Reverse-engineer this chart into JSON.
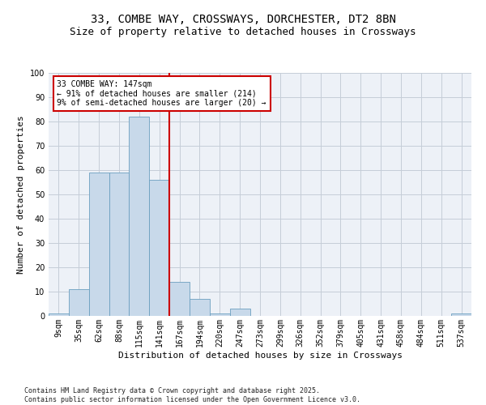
{
  "title_line1": "33, COMBE WAY, CROSSWAYS, DORCHESTER, DT2 8BN",
  "title_line2": "Size of property relative to detached houses in Crossways",
  "xlabel": "Distribution of detached houses by size in Crossways",
  "ylabel": "Number of detached properties",
  "bins": [
    "9sqm",
    "35sqm",
    "62sqm",
    "88sqm",
    "115sqm",
    "141sqm",
    "167sqm",
    "194sqm",
    "220sqm",
    "247sqm",
    "273sqm",
    "299sqm",
    "326sqm",
    "352sqm",
    "379sqm",
    "405sqm",
    "431sqm",
    "458sqm",
    "484sqm",
    "511sqm",
    "537sqm"
  ],
  "bar_values": [
    1,
    11,
    59,
    59,
    82,
    56,
    14,
    7,
    1,
    3,
    0,
    0,
    0,
    0,
    0,
    0,
    0,
    0,
    0,
    0,
    1
  ],
  "bar_color": "#c8d9ea",
  "bar_edge_color": "#6b9fc0",
  "vline_x_idx": 5.5,
  "vline_color": "#cc0000",
  "annotation_text": "33 COMBE WAY: 147sqm\n← 91% of detached houses are smaller (214)\n9% of semi-detached houses are larger (20) →",
  "annotation_box_color": "#ffffff",
  "annotation_box_edge": "#cc0000",
  "ylim": [
    0,
    100
  ],
  "yticks": [
    0,
    10,
    20,
    30,
    40,
    50,
    60,
    70,
    80,
    90,
    100
  ],
  "grid_color": "#c5cdd8",
  "bg_color": "#edf1f7",
  "footnote": "Contains HM Land Registry data © Crown copyright and database right 2025.\nContains public sector information licensed under the Open Government Licence v3.0.",
  "title_fontsize": 10,
  "subtitle_fontsize": 9,
  "axis_label_fontsize": 8,
  "tick_fontsize": 7,
  "annotation_fontsize": 7,
  "footnote_fontsize": 6
}
